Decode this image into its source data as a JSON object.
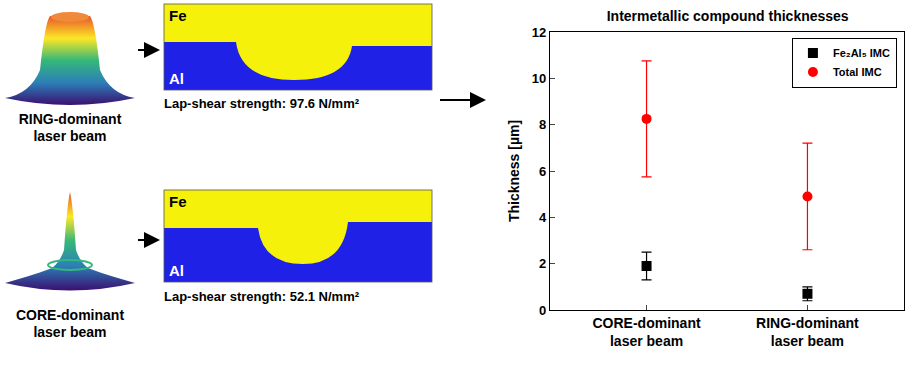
{
  "beams": [
    {
      "label": "RING-dominant laser beam",
      "strength": "Lap-shear strength: 97.6 N/mm²",
      "top_metal": "Fe",
      "bottom_metal": "Al"
    },
    {
      "label": "CORE-dominant laser beam",
      "strength": "Lap-shear strength: 52.1 N/mm²",
      "top_metal": "Fe",
      "bottom_metal": "Al"
    }
  ],
  "chart_data": {
    "type": "scatter",
    "title": "Intermetallic compound thicknesses",
    "y_label": "Thickness [µm]",
    "categories": [
      "CORE-dominant laser beam",
      "RING-dominant laser beam"
    ],
    "series": [
      {
        "name": "Fe₂Al₅ IMC",
        "color": "#000000",
        "marker": "square",
        "values": [
          1.9,
          0.7
        ],
        "errors": [
          0.6,
          0.3
        ]
      },
      {
        "name": "Total IMC",
        "color": "#ff0000",
        "marker": "circle",
        "values": [
          8.25,
          4.9
        ],
        "errors": [
          2.5,
          2.3
        ]
      }
    ],
    "ylim": [
      0,
      12
    ],
    "yticks": [
      0,
      2,
      4,
      6,
      8,
      10,
      12
    ],
    "grid": false,
    "legend": "top right"
  }
}
